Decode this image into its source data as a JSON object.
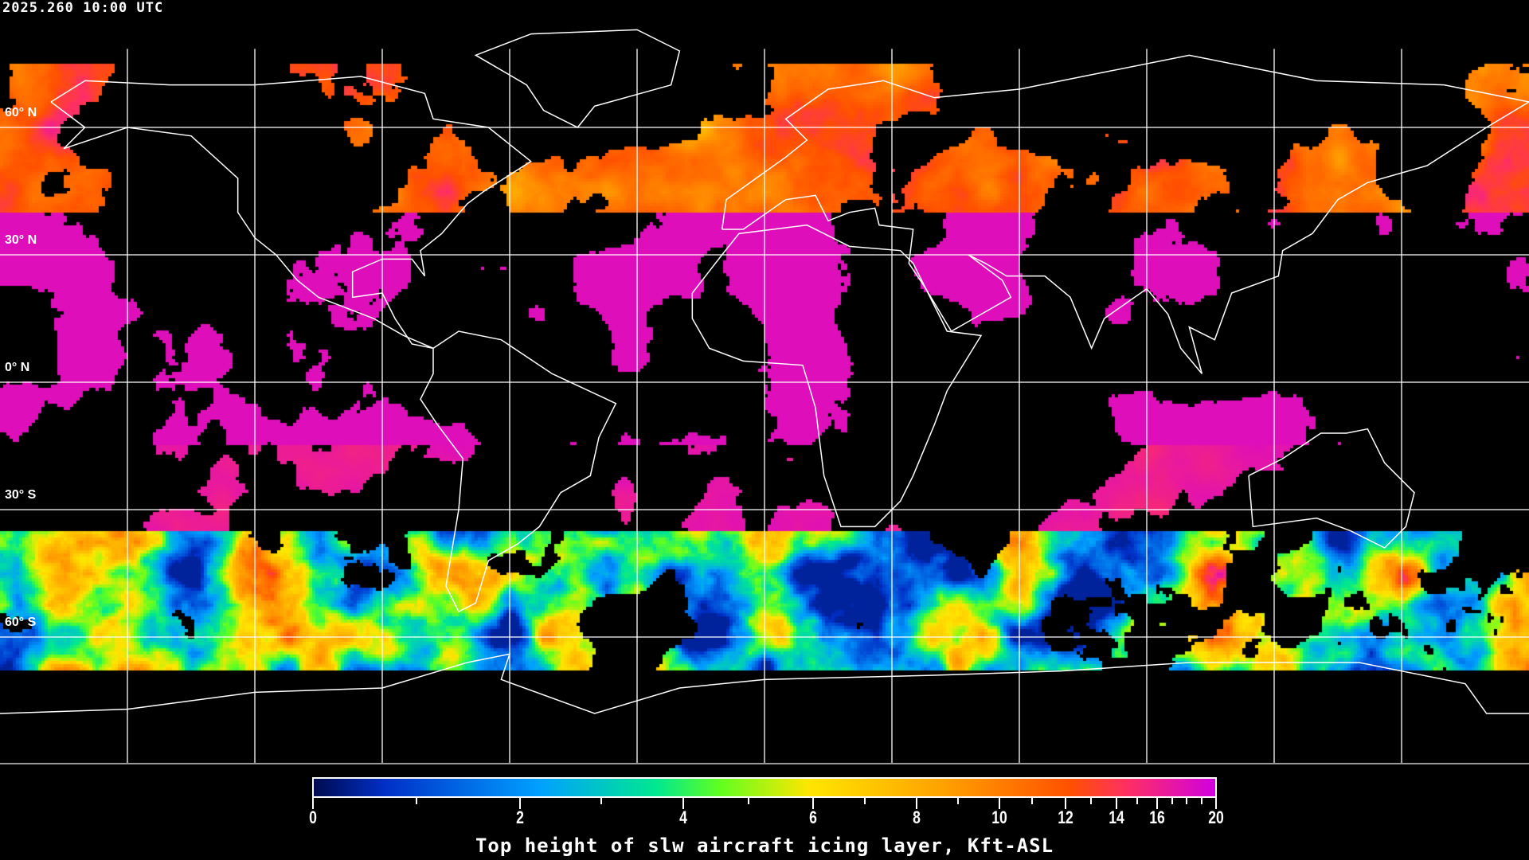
{
  "header": {
    "timestamp": "2025.260 10:00 UTC"
  },
  "map": {
    "projection": "equirectangular",
    "gridlines": "30 degrees",
    "lat_labels": [
      "60° N",
      "30° N",
      "0° N",
      "30° S",
      "60° S"
    ],
    "coastline_color": "#ffffff",
    "background_color": "#000000"
  },
  "colorbar": {
    "title": "Top height of slw aircraft icing layer, Kft-ASL",
    "range": [
      0,
      20
    ],
    "major_ticks": [
      "0",
      "2",
      "4",
      "6",
      "8",
      "10",
      "12",
      "14",
      "16",
      "20"
    ],
    "colors": [
      "#000a50",
      "#0030c8",
      "#00a0ff",
      "#00e890",
      "#60ff20",
      "#ffe600",
      "#ffa000",
      "#ff5000",
      "#ff3060",
      "#d000e0"
    ]
  }
}
